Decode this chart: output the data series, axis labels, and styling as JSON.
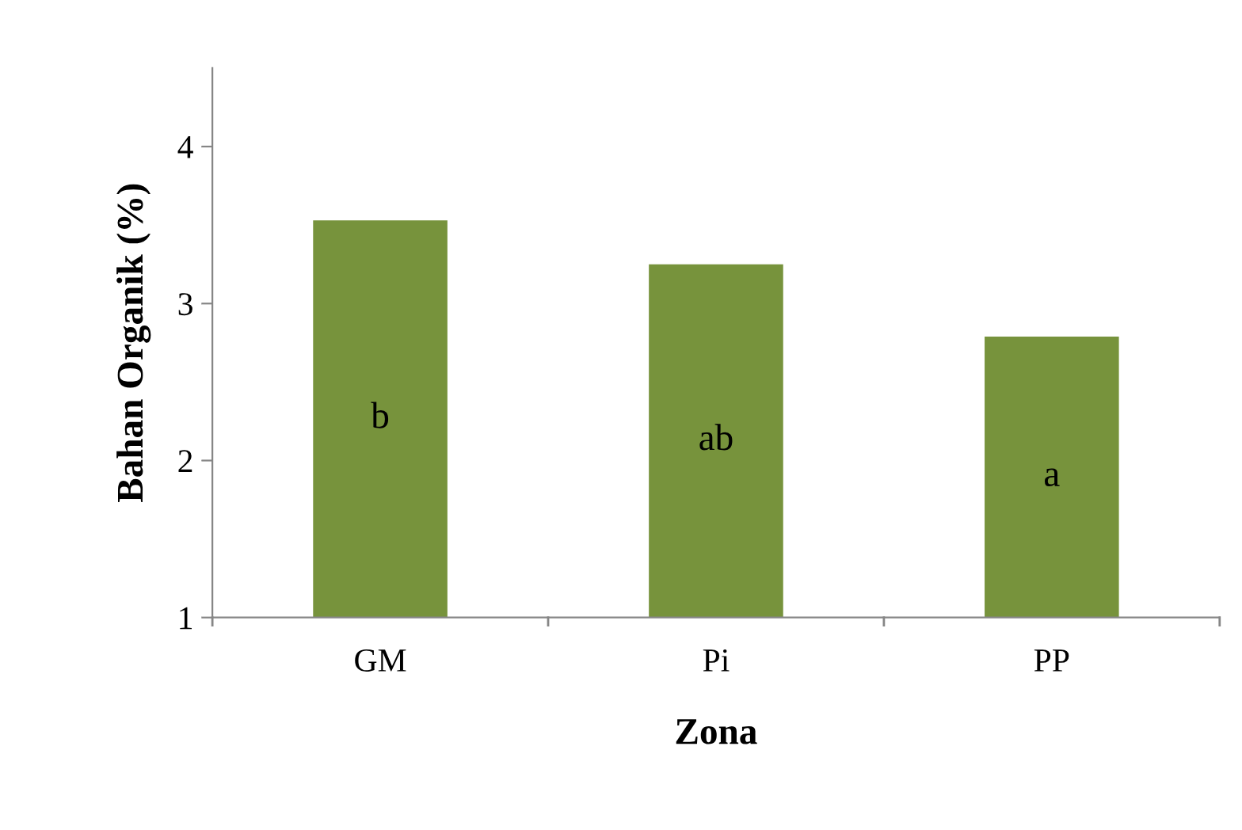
{
  "chart_data": {
    "type": "bar",
    "xlabel": "Zona",
    "ylabel": "Bahan Organik (%)",
    "categories": [
      "GM",
      "Pi",
      "PP"
    ],
    "values": [
      3.53,
      3.25,
      2.79
    ],
    "color": "#77933c",
    "ylim": [
      1,
      4.5
    ],
    "yticks": [
      1,
      2,
      3,
      4
    ],
    "grid": false,
    "annotations": [
      "b",
      "ab",
      "a"
    ]
  }
}
